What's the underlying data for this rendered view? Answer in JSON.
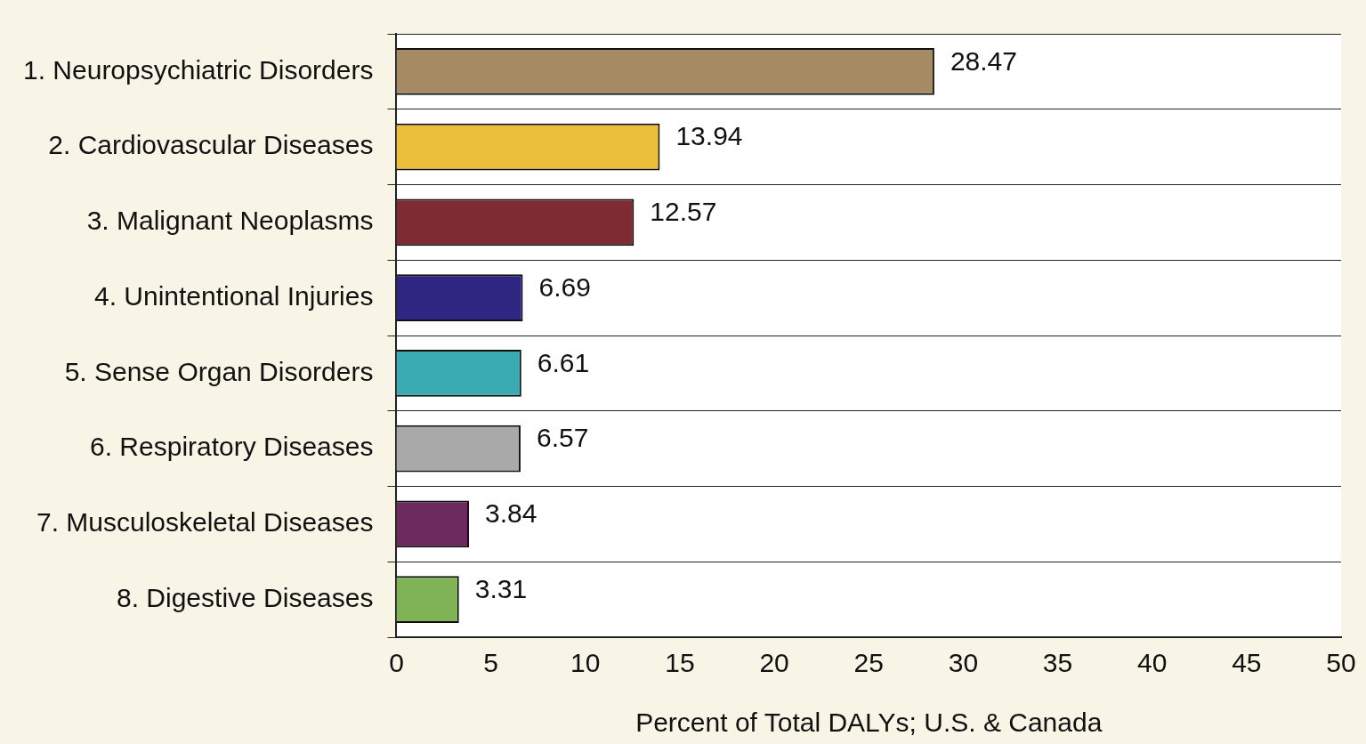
{
  "chart_data": {
    "type": "bar",
    "orientation": "horizontal",
    "xlabel": "Percent of Total DALYs; U.S. & Canada",
    "categories": [
      "1. Neuropsychiatric Disorders",
      "2. Cardiovascular Diseases",
      "3. Malignant Neoplasms",
      "4. Unintentional Injuries",
      "5. Sense Organ Disorders",
      "6. Respiratory Diseases",
      "7. Musculoskeletal Diseases",
      "8. Digestive Diseases"
    ],
    "values": [
      28.47,
      13.94,
      12.57,
      6.69,
      6.61,
      6.57,
      3.84,
      3.31
    ],
    "colors": [
      "#a68a64",
      "#ebbf3a",
      "#7e2b33",
      "#2f2682",
      "#3aaab3",
      "#a9a9a9",
      "#6b2b5e",
      "#7fb356"
    ],
    "xlim": [
      0,
      50
    ],
    "xticks": [
      0,
      5,
      10,
      15,
      20,
      25,
      30,
      35,
      40,
      45,
      50
    ],
    "grid": "y",
    "data_labels": true,
    "legend": false
  }
}
